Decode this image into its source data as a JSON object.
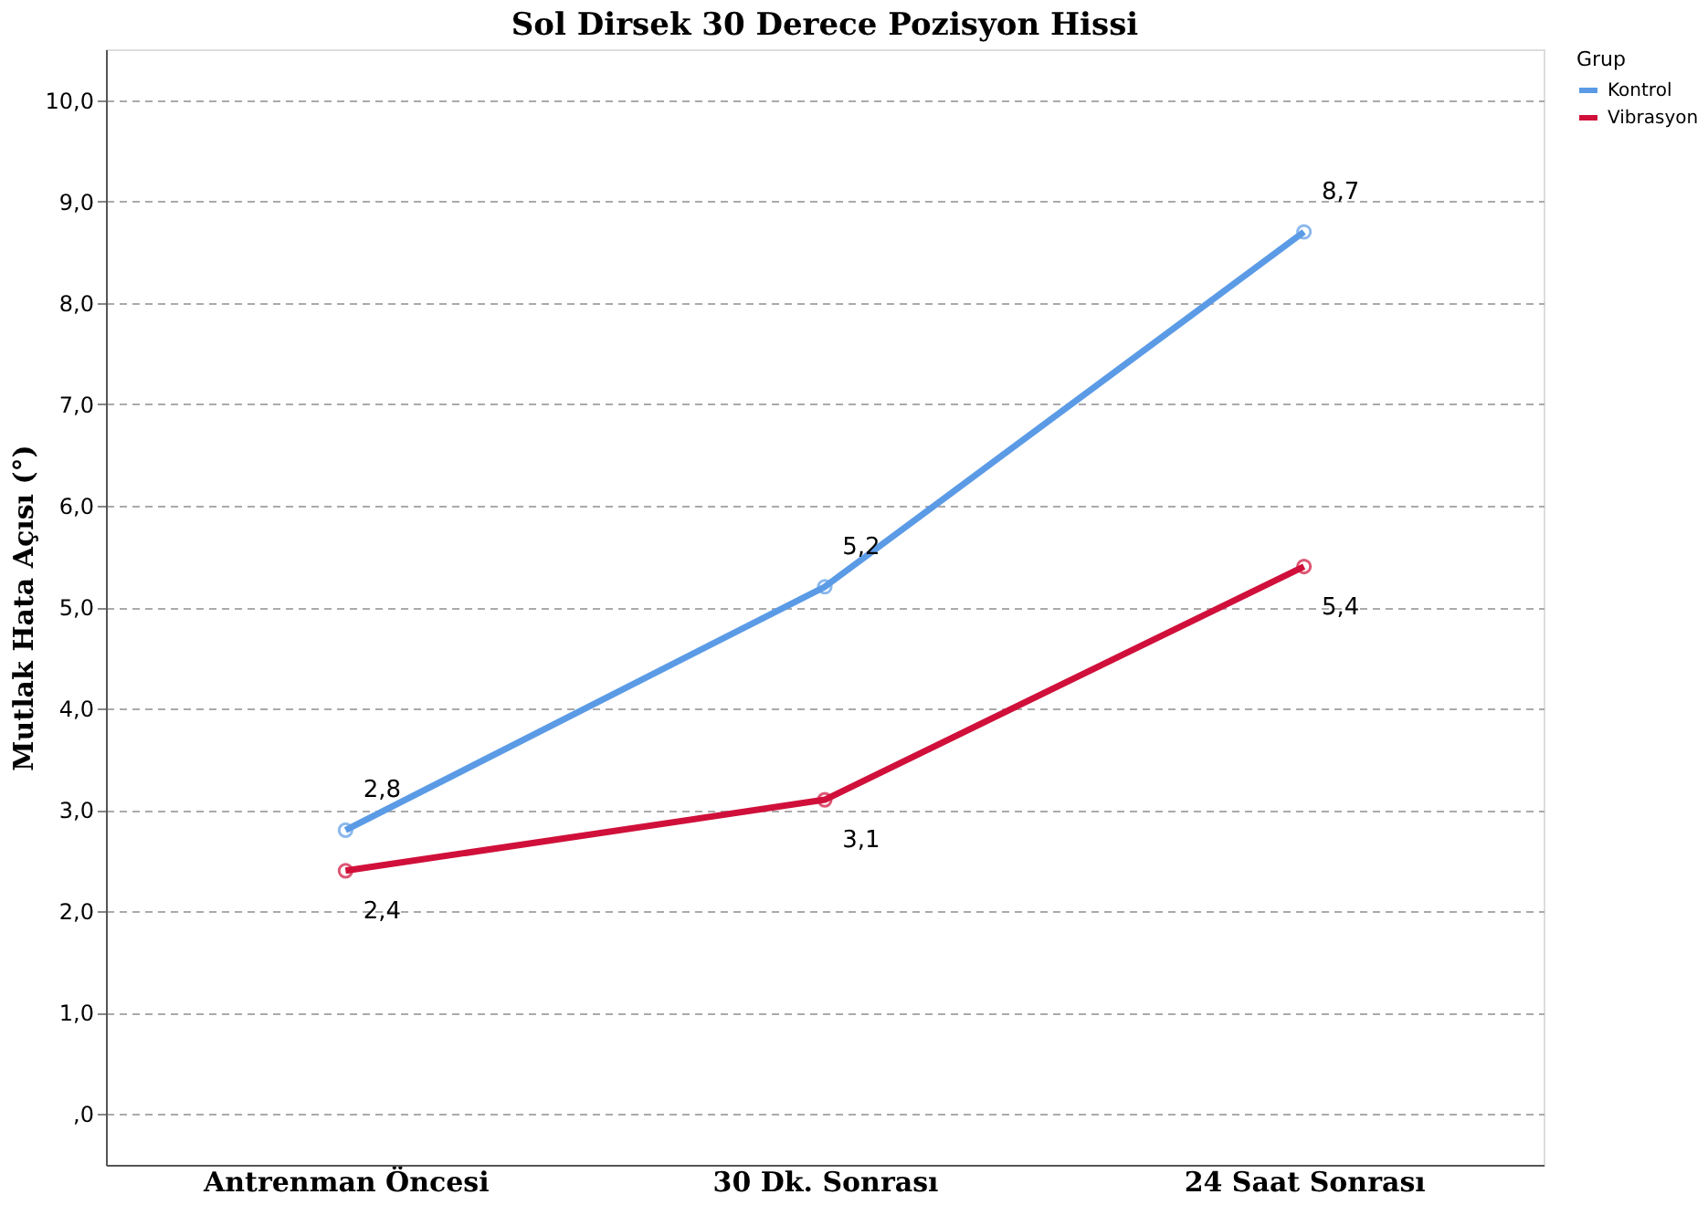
{
  "chart_data": {
    "type": "line",
    "title": "Sol Dirsek 30 Derece Pozisyon Hissi",
    "ylabel": "Mutlak Hata Açısı (°)",
    "legend_title": "Grup",
    "categories": [
      "Antrenman Öncesi",
      "30 Dk. Sonrası",
      "24 Saat Sonrası"
    ],
    "series": [
      {
        "name": "Kontrol",
        "color": "#5b9be6",
        "values": [
          2.8,
          5.2,
          8.7
        ],
        "value_labels": [
          "2,8",
          "5,2",
          "8,7"
        ]
      },
      {
        "name": "Vibrasyon",
        "color": "#d0103a",
        "values": [
          2.4,
          3.1,
          5.4
        ],
        "value_labels": [
          "2,4",
          "3,1",
          "5,4"
        ]
      }
    ],
    "ylim": [
      -0.5,
      10.5
    ],
    "yticks": [
      {
        "value": 0,
        "label": ",0"
      },
      {
        "value": 1,
        "label": "1,0"
      },
      {
        "value": 2,
        "label": "2,0"
      },
      {
        "value": 3,
        "label": "3,0"
      },
      {
        "value": 4,
        "label": "4,0"
      },
      {
        "value": 5,
        "label": "5,0"
      },
      {
        "value": 6,
        "label": "6,0"
      },
      {
        "value": 7,
        "label": "7,0"
      },
      {
        "value": 8,
        "label": "8,0"
      },
      {
        "value": 9,
        "label": "9,0"
      },
      {
        "value": 10,
        "label": "10,0"
      }
    ],
    "grid": "y",
    "legend": "right",
    "marker": "circle",
    "line_style": "solid"
  }
}
